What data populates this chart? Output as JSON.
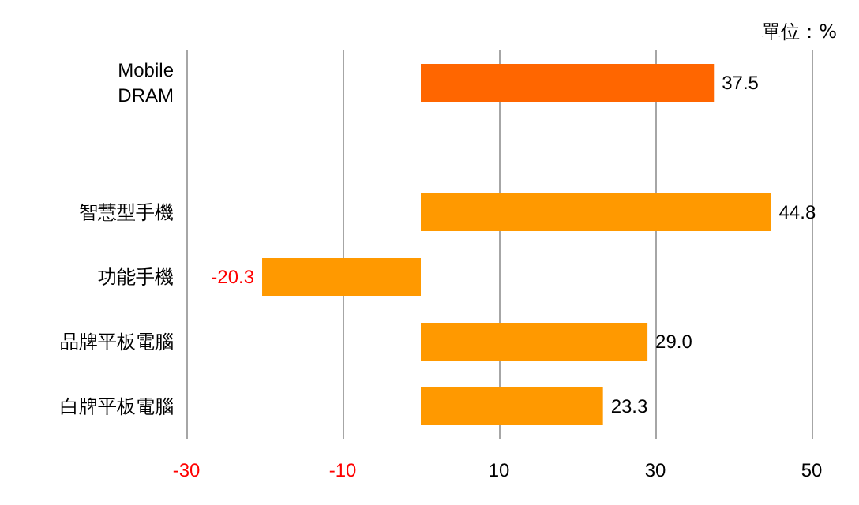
{
  "chart_data": {
    "type": "bar",
    "orientation": "horizontal",
    "categories": [
      "Mobile\nDRAM",
      null,
      "智慧型手機",
      "功能手機",
      "品牌平板電腦",
      "白牌平板電腦"
    ],
    "values": [
      37.5,
      null,
      44.8,
      -20.3,
      29.0,
      23.3
    ],
    "colors": [
      "#ff6600",
      null,
      "#ff9900",
      "#ff9900",
      "#ff9900",
      "#ff9900"
    ],
    "value_labels": [
      "37.5",
      null,
      "44.8",
      "-20.3",
      "29.0",
      "23.3"
    ],
    "xlim": [
      -30,
      50
    ],
    "xticks": [
      -30,
      -10,
      10,
      30,
      50
    ],
    "grid": "x",
    "annotations": [
      "單位：%"
    ]
  }
}
